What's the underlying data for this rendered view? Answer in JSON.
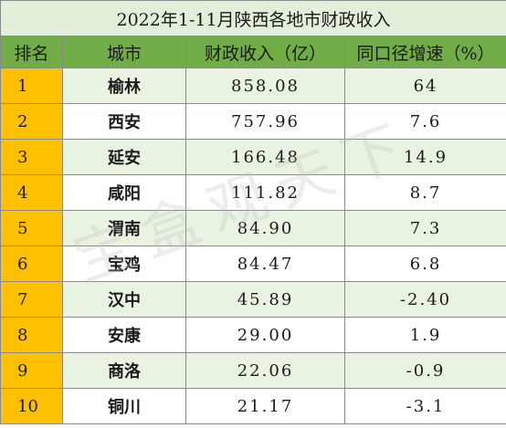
{
  "title": "2022年1-11月陕西各地市财政收入",
  "headers": [
    "排名",
    "城市",
    "财政收入（亿）",
    "同口径增速（%）"
  ],
  "rows": [
    {
      "rank": "1",
      "city": "榆林",
      "revenue": "858.08",
      "growth": "64"
    },
    {
      "rank": "2",
      "city": "西安",
      "revenue": "757.96",
      "growth": "7.6"
    },
    {
      "rank": "3",
      "city": "延安",
      "revenue": "166.48",
      "growth": "14.9"
    },
    {
      "rank": "4",
      "city": "咸阳",
      "revenue": "111.82",
      "growth": "8.7"
    },
    {
      "rank": "5",
      "city": "渭南",
      "revenue": "84.90",
      "growth": "7.3"
    },
    {
      "rank": "6",
      "city": "宝鸡",
      "revenue": "84.47",
      "growth": "6.8"
    },
    {
      "rank": "7",
      "city": "汉中",
      "revenue": "45.89",
      "growth": "-2.40"
    },
    {
      "rank": "8",
      "city": "安康",
      "revenue": "29.00",
      "growth": "1.9"
    },
    {
      "rank": "9",
      "city": "商洛",
      "revenue": "22.06",
      "growth": "-0.9"
    },
    {
      "rank": "10",
      "city": "铜川",
      "revenue": "21.17",
      "growth": "-3.1"
    }
  ],
  "watermark": "宝盒观天下",
  "colors": {
    "header": "#70ad47",
    "title_bg": "#e2efd9",
    "rank_bg": "#ffc000",
    "stripe": "#e9f3e2"
  }
}
